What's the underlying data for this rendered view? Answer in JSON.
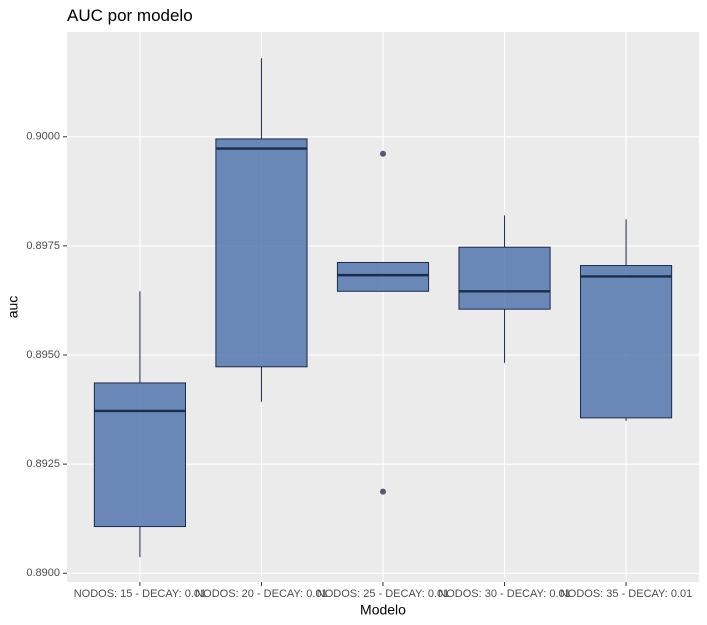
{
  "chart_data": {
    "type": "box",
    "title": "AUC por modelo",
    "x_label": "Modelo",
    "y_label": "auc",
    "categories": [
      "NODOS: 15 - DECAY: 0.01",
      "NODOS: 20 - DECAY: 0.01",
      "NODOS: 25 - DECAY: 0.01",
      "NODOS: 30 - DECAY: 0.01",
      "NODOS: 35 - DECAY: 0.01"
    ],
    "min": [
      0.89037,
      0.89393,
      0.89646,
      0.89482,
      0.89349
    ],
    "q1": [
      0.89107,
      0.89473,
      0.89646,
      0.89605,
      0.89356
    ],
    "median": [
      0.89372,
      0.89973,
      0.89683,
      0.89646,
      0.8968
    ],
    "q3": [
      0.89436,
      0.89995,
      0.89712,
      0.89747,
      0.89705
    ],
    "max": [
      0.89646,
      0.9018,
      0.89712,
      0.8982,
      0.89811
    ],
    "outliers": [
      [],
      [],
      [
        0.89961,
        0.89187
      ],
      [],
      []
    ],
    "color": "#4d71ab",
    "edge_color": "#1c2b4a",
    "ylim": [
      0.8898,
      0.9024
    ],
    "yticks": [
      {
        "value": 0.89,
        "label": "0.8900"
      },
      0.8925,
      {
        "value": 0.895,
        "label": "0.8950"
      },
      0.8975,
      {
        "value": 0.9,
        "label": "0.9000"
      }
    ],
    "grid": true
  }
}
